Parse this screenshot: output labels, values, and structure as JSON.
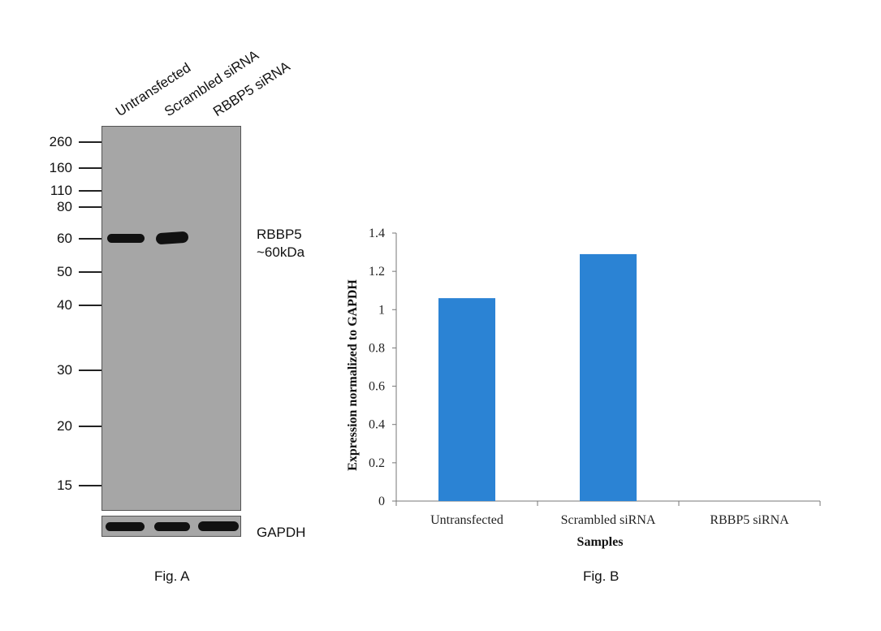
{
  "fig_a": {
    "caption": "Fig. A",
    "lanes": [
      "Untransfected",
      "Scrambled siRNA",
      "RBBP5 siRNA"
    ],
    "markers": [
      "260",
      "160",
      "110",
      "80",
      "60",
      "50",
      "40",
      "30",
      "20",
      "15"
    ],
    "target_label_line1": "RBBP5",
    "target_label_line2": "~60kDa",
    "loading_control_label": "GAPDH"
  },
  "fig_b": {
    "caption": "Fig. B"
  },
  "chart_data": {
    "type": "bar",
    "categories": [
      "Untransfected",
      "Scrambled siRNA",
      "RBBP5 siRNA"
    ],
    "values": [
      1.06,
      1.29,
      0.0
    ],
    "title": "",
    "xlabel": "Samples",
    "ylabel": "Expression normalized to GAPDH",
    "ylim": [
      0,
      1.4
    ],
    "yticks": [
      "0",
      "0.2",
      "0.4",
      "0.6",
      "0.8",
      "1",
      "1.2",
      "1.4"
    ],
    "grid": false,
    "legend": "none",
    "bar_color": "#2b83d4"
  }
}
